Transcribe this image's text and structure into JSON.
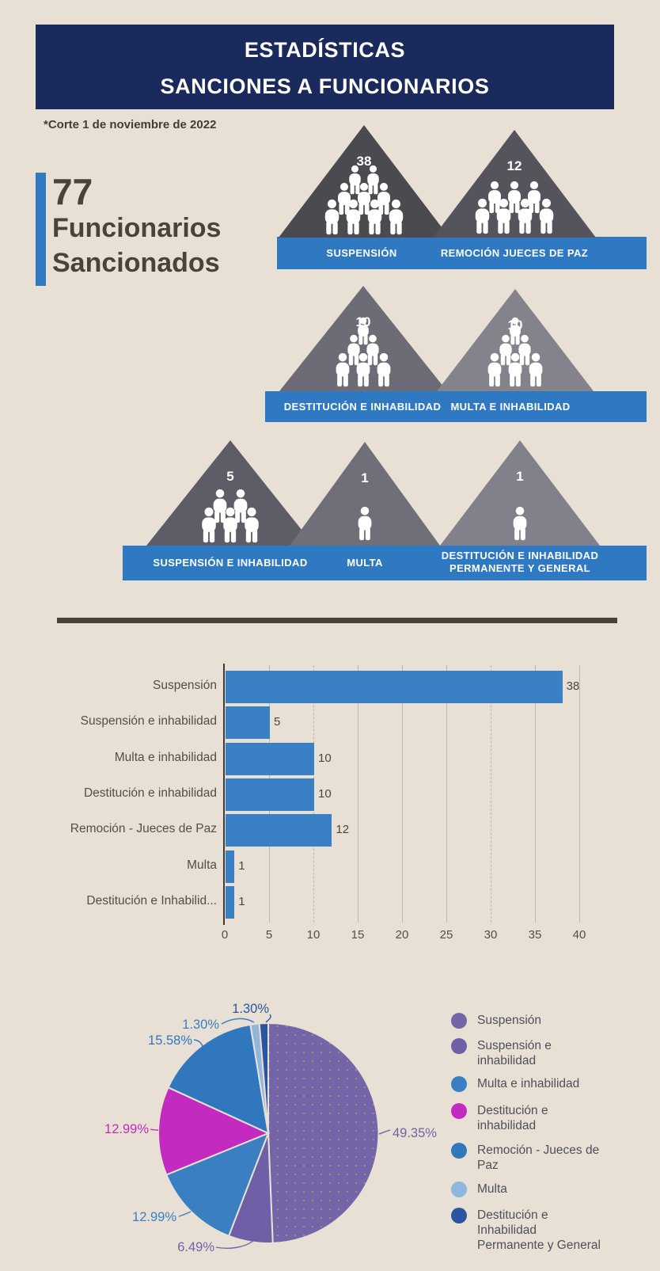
{
  "colors": {
    "background": "#e8e0d4",
    "header_bg": "#1a2a5c",
    "accent_blue": "#3179c1",
    "band_blue": "#2f79c2",
    "bar_blue": "#3a80c4",
    "divider": "#4a4138",
    "text_dark": "#4a423b"
  },
  "header": {
    "line1": "ESTADÍSTICAS",
    "line2": "SANCIONES A FUNCIONARIOS"
  },
  "note": "*Corte 1 de noviembre de 2022",
  "stat": {
    "value": "77",
    "label_line1": "Funcionarios",
    "label_line2": "Sancionados"
  },
  "pyramids": {
    "rows": [
      {
        "triangles": [
          {
            "value": "38",
            "label": "SUSPENSIÓN",
            "color": "#4b4a4f",
            "figures": "2,3,4"
          },
          {
            "value": "12",
            "label": "REMOCIÓN JUECES DE PAZ",
            "color": "#55545c",
            "figures": "3,4"
          }
        ]
      },
      {
        "triangles": [
          {
            "value": "10",
            "label": "DESTITUCIÓN E INHABILIDAD",
            "color": "#6d6b76",
            "figures": "1,2,3"
          },
          {
            "value": "10",
            "label": "MULTA E INHABILIDAD",
            "color": "#84828b",
            "figures": "1,2,3"
          }
        ]
      },
      {
        "triangles": [
          {
            "value": "5",
            "label": "SUSPENSIÓN E INHABILIDAD",
            "color": "#5e5c66",
            "figures": "2,3"
          },
          {
            "value": "1",
            "label": "MULTA",
            "color": "#706e78",
            "figures": "1"
          },
          {
            "value": "1",
            "label": "DESTITUCIÓN E INHABILIDAD\nPERMANENTE Y GENERAL",
            "color": "#82808a",
            "figures": "1"
          }
        ]
      }
    ]
  },
  "chart_data": [
    {
      "type": "bar",
      "orientation": "horizontal",
      "title": "",
      "categories": [
        "Suspensión",
        "Suspensión e inhabilidad",
        "Multa e inhabilidad",
        "Destitución e inhabilidad",
        "Remoción - Jueces de Paz",
        "Multa",
        "Destitución e Inhabilid..."
      ],
      "values": [
        38,
        5,
        10,
        10,
        12,
        1,
        1
      ],
      "value_labels": [
        "38",
        "5",
        "10",
        "10",
        "12",
        "1",
        "1"
      ],
      "xlabel": "",
      "ylabel": "",
      "xlim": [
        0,
        40
      ],
      "xticks": [
        0,
        5,
        10,
        15,
        20,
        25,
        30,
        35,
        40
      ],
      "dashed_gridlines": [
        10,
        30
      ],
      "grid": true,
      "legend": false,
      "bar_color": "#3a80c4"
    },
    {
      "type": "pie",
      "title": "",
      "labels": [
        "Suspensión",
        "Suspensión e inhabilidad",
        "Multa e inhabilidad",
        "Destitución e inhabilidad",
        "Remoción - Jueces de Paz",
        "Multa",
        "Destitución e Inhabilidad Permanente y General"
      ],
      "values": [
        49.35,
        6.49,
        12.99,
        12.99,
        15.58,
        1.3,
        1.3
      ],
      "value_labels": [
        "49.35%",
        "6.49%",
        "12.99%",
        "12.99%",
        "15.58%",
        "1.30%",
        "1.30%"
      ],
      "slice_colors": [
        "#7465a8",
        "#6e5fa6",
        "#3a7fc2",
        "#c32ac0",
        "#3077be",
        "#8fb6dd",
        "#2b55a2"
      ],
      "label_colors": [
        "#7262ac",
        "#7262ac",
        "#3a7fc2",
        "#c32ac0",
        "#3077be",
        "#3b7fc4",
        "#2b55a2"
      ],
      "legend_labels": [
        "Suspensión",
        "Suspensión e\ninhabilidad",
        "Multa e inhabilidad",
        "Destitución e\ninhabilidad",
        "Remoción - Jueces de\nPaz",
        "Multa",
        "Destitución e\nInhabilidad\nPermanente y General"
      ],
      "legend_position": "right",
      "start_angle_deg": 0,
      "direction": "clockwise"
    }
  ]
}
